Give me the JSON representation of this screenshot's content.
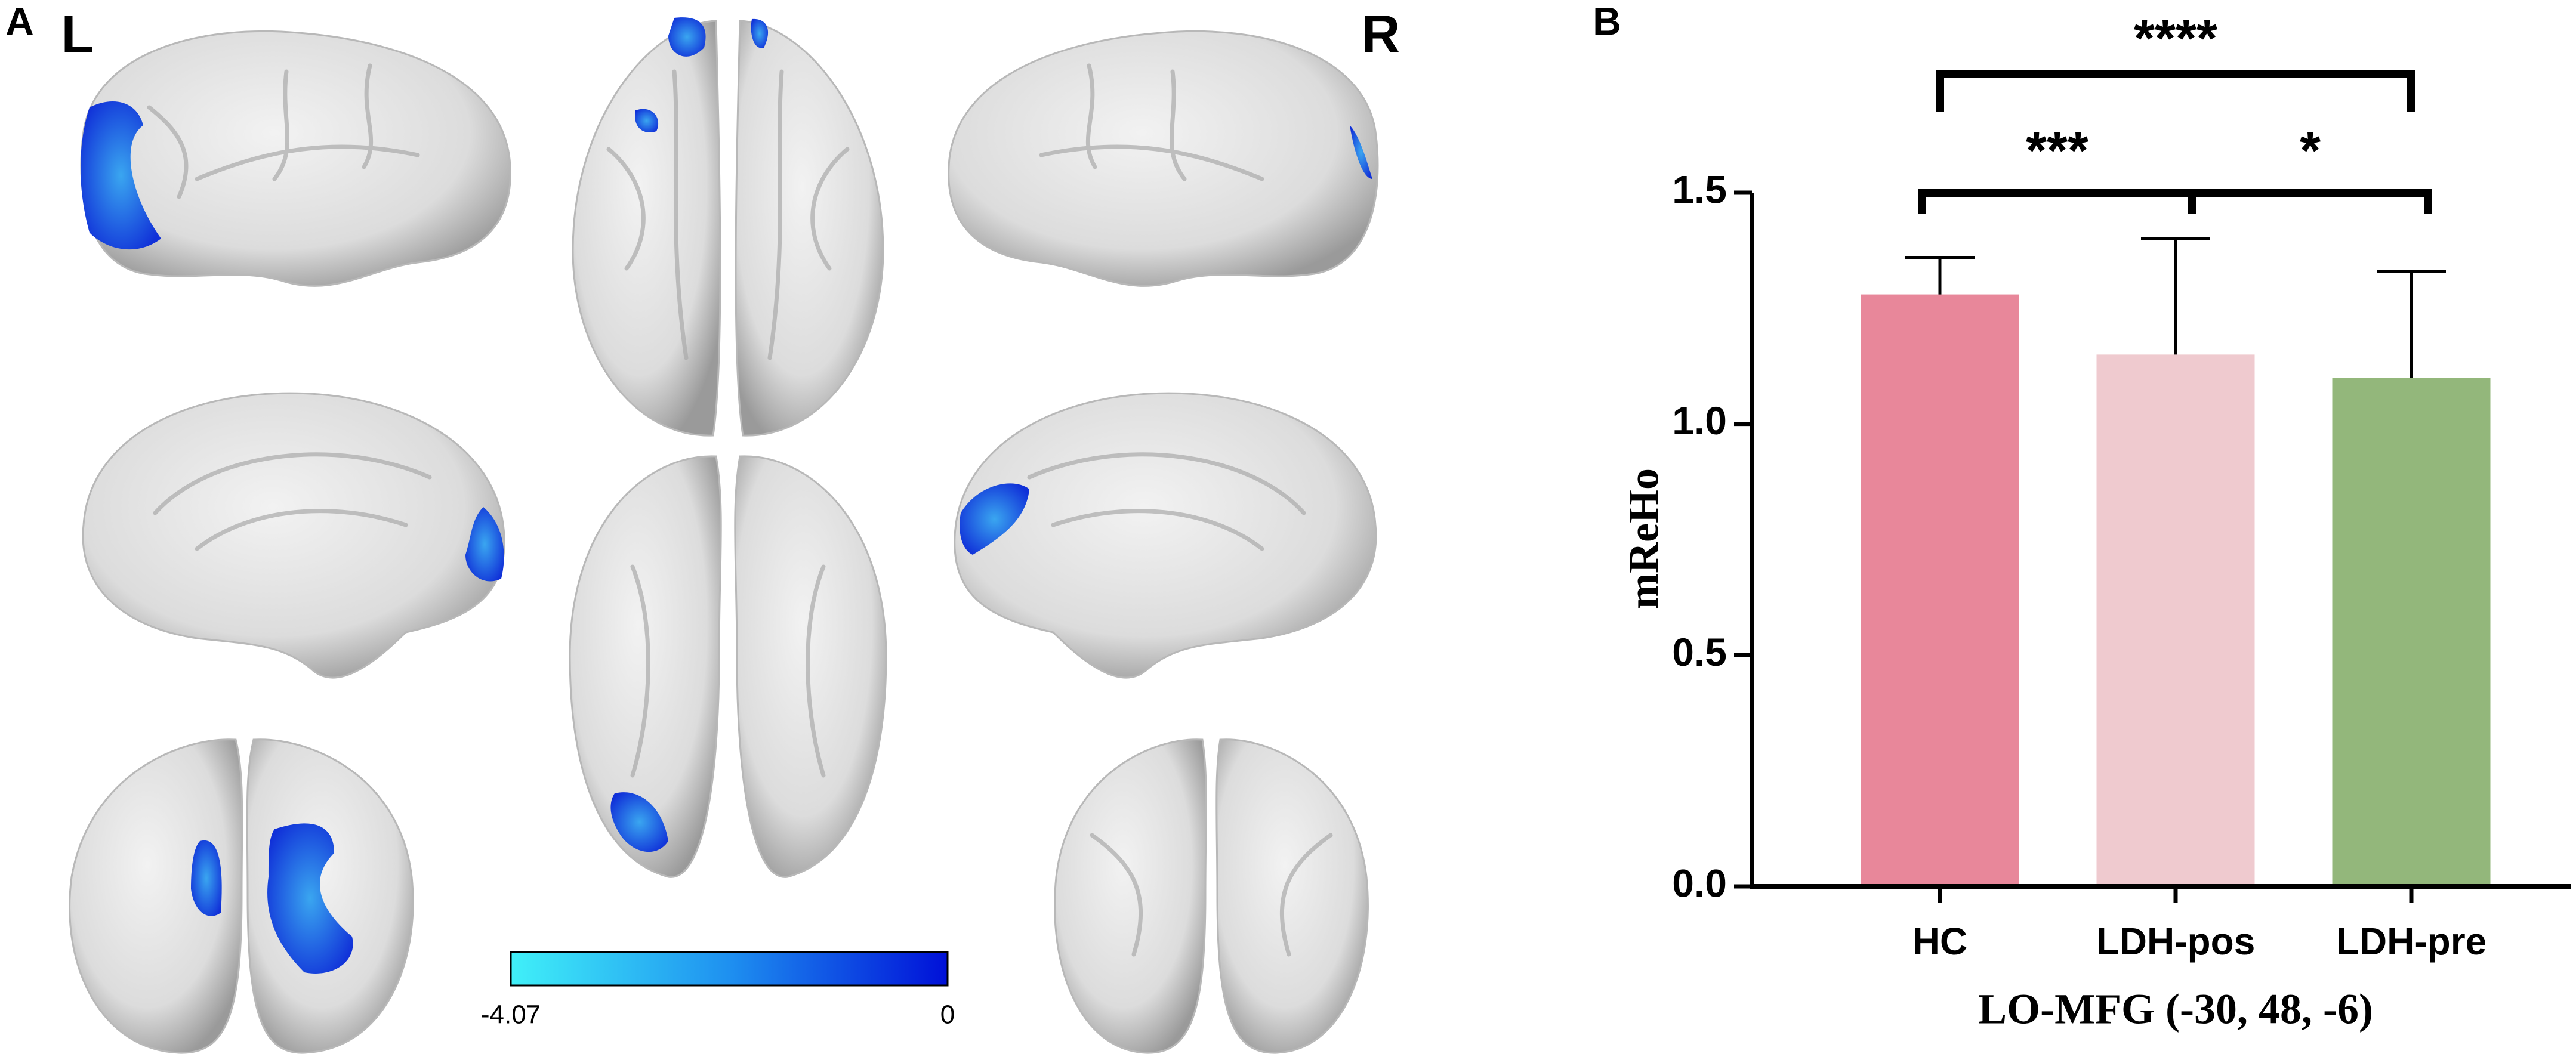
{
  "panel_a": {
    "label": "A",
    "left": "L",
    "right": "R",
    "colorbar": {
      "min": -4.07,
      "max": 0
    }
  },
  "chart_data": {
    "type": "bar",
    "label": "B",
    "categories": [
      "HC",
      "LDH-pos",
      "LDH-pre"
    ],
    "values": [
      1.28,
      1.15,
      1.1
    ],
    "errors": [
      0.08,
      0.25,
      0.23
    ],
    "colors": [
      "#e8879a",
      "#efcacf",
      "#93b77b"
    ],
    "ylim": [
      0,
      1.5
    ],
    "yticks": [
      {
        "value": 0,
        "label": "0.0"
      },
      0.5,
      {
        "value": 1,
        "label": "1.0"
      },
      1.5
    ],
    "ylabel": "mReHo",
    "xlabel": "LO-MFG (-30, 48, -6)",
    "comparisons": [
      {
        "groups": [
          "HC",
          "LDH-pre"
        ],
        "label": "****"
      },
      {
        "groups": [
          "HC",
          "LDH-pos"
        ],
        "label": "***"
      },
      {
        "groups": [
          "LDH-pos",
          "LDH-pre"
        ],
        "label": "*"
      }
    ]
  }
}
